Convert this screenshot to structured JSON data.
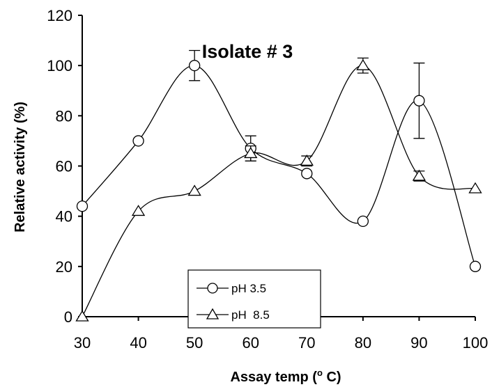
{
  "chart_data": {
    "type": "line",
    "title": "Isolate # 3",
    "xlabel": "Assay temp (",
    "xlabel_sup": "o",
    "xlabel_tail": " C)",
    "ylabel": "Relative activity (%)",
    "x": [
      30,
      40,
      50,
      60,
      70,
      80,
      90,
      100
    ],
    "xlim": [
      30,
      100
    ],
    "ylim": [
      0,
      120
    ],
    "xticks": [
      "30",
      "40",
      "50",
      "60",
      "70",
      "80",
      "90",
      "100"
    ],
    "yticks": [
      "0",
      "20",
      "40",
      "60",
      "80",
      "100",
      "120"
    ],
    "grid": false,
    "legend_position": "bottom-center",
    "series": [
      {
        "name": "pH 3.5",
        "marker": "circle",
        "values": [
          44,
          70,
          100,
          67,
          57,
          38,
          86,
          20
        ],
        "errors": [
          0,
          0,
          6,
          5,
          0,
          0,
          15,
          0
        ]
      },
      {
        "name": "pH  8.5",
        "marker": "triangle",
        "values": [
          0,
          42,
          50,
          65,
          62,
          100,
          56,
          51
        ],
        "errors": [
          0,
          0,
          0,
          3,
          2,
          3,
          2,
          0
        ]
      }
    ]
  }
}
